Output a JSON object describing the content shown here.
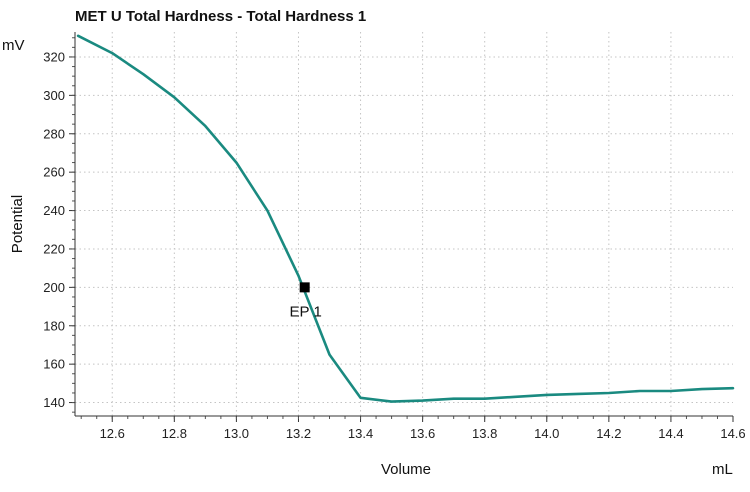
{
  "chart_data": {
    "type": "line",
    "title": "MET U Total Hardness - Total Hardness  1",
    "xlabel": "Volume",
    "xunit": "mL",
    "ylabel": "Potential",
    "yunit": "mV",
    "xlim": [
      12.48,
      14.6
    ],
    "ylim": [
      133,
      333
    ],
    "xticks": [
      12.6,
      12.8,
      13.0,
      13.2,
      13.4,
      13.6,
      13.8,
      14.0,
      14.2,
      14.4,
      14.6
    ],
    "xtick_labels": [
      "12.6",
      "12.8",
      "13.0",
      "13.2",
      "13.4",
      "13.6",
      "13.8",
      "14.0",
      "14.2",
      "14.4",
      "14.6"
    ],
    "yticks": [
      140,
      160,
      180,
      200,
      220,
      240,
      260,
      280,
      300,
      320
    ],
    "ytick_labels": [
      "140",
      "160",
      "180",
      "200",
      "220",
      "240",
      "260",
      "280",
      "300",
      "320"
    ],
    "grid": true,
    "series": [
      {
        "color": "#1a8a80",
        "x": [
          12.49,
          12.6,
          12.7,
          12.8,
          12.9,
          13.0,
          13.1,
          13.2,
          13.3,
          13.4,
          13.5,
          13.6,
          13.7,
          13.8,
          13.9,
          14.0,
          14.1,
          14.2,
          14.3,
          14.4,
          14.5,
          14.6
        ],
        "y": [
          331,
          322,
          311,
          299,
          284,
          265,
          240,
          206,
          165,
          142.5,
          140.5,
          141,
          142,
          142,
          143,
          144,
          144.5,
          145,
          146,
          146,
          147,
          147.5
        ]
      }
    ],
    "annotations": [
      {
        "label": "EP 1",
        "x": 13.22,
        "y": 200,
        "marker": "square",
        "color": "#000000"
      }
    ],
    "axis_label_color": "#1a8a80"
  }
}
